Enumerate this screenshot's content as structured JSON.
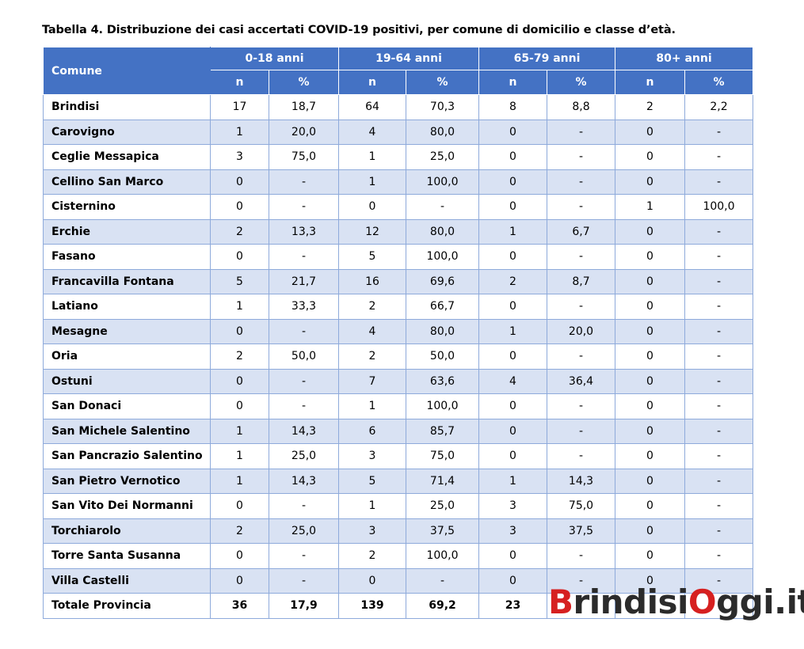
{
  "title": "Tabella 4. Distribuzione dei casi accertati COVID-19 positivi, per comune di domicilio e classe d’età.",
  "header": {
    "comune": "Comune",
    "groups": [
      "0-18 anni",
      "19-64 anni",
      "65-79 anni",
      "80+ anni"
    ],
    "sub": [
      "n",
      "%",
      "n",
      "%",
      "n",
      "%",
      "n",
      "%"
    ]
  },
  "rows": [
    {
      "name": "Brindisi",
      "cells": [
        "17",
        "18,7",
        "64",
        "70,3",
        "8",
        "8,8",
        "2",
        "2,2"
      ]
    },
    {
      "name": "Carovigno",
      "cells": [
        "1",
        "20,0",
        "4",
        "80,0",
        "0",
        "-",
        "0",
        "-"
      ]
    },
    {
      "name": "Ceglie Messapica",
      "cells": [
        "3",
        "75,0",
        "1",
        "25,0",
        "0",
        "-",
        "0",
        "-"
      ]
    },
    {
      "name": "Cellino San Marco",
      "cells": [
        "0",
        "-",
        "1",
        "100,0",
        "0",
        "-",
        "0",
        "-"
      ]
    },
    {
      "name": "Cisternino",
      "cells": [
        "0",
        "-",
        "0",
        "-",
        "0",
        "-",
        "1",
        "100,0"
      ]
    },
    {
      "name": "Erchie",
      "cells": [
        "2",
        "13,3",
        "12",
        "80,0",
        "1",
        "6,7",
        "0",
        "-"
      ]
    },
    {
      "name": "Fasano",
      "cells": [
        "0",
        "-",
        "5",
        "100,0",
        "0",
        "-",
        "0",
        "-"
      ]
    },
    {
      "name": "Francavilla Fontana",
      "cells": [
        "5",
        "21,7",
        "16",
        "69,6",
        "2",
        "8,7",
        "0",
        "-"
      ]
    },
    {
      "name": "Latiano",
      "cells": [
        "1",
        "33,3",
        "2",
        "66,7",
        "0",
        "-",
        "0",
        "-"
      ]
    },
    {
      "name": "Mesagne",
      "cells": [
        "0",
        "-",
        "4",
        "80,0",
        "1",
        "20,0",
        "0",
        "-"
      ]
    },
    {
      "name": "Oria",
      "cells": [
        "2",
        "50,0",
        "2",
        "50,0",
        "0",
        "-",
        "0",
        "-"
      ]
    },
    {
      "name": "Ostuni",
      "cells": [
        "0",
        "-",
        "7",
        "63,6",
        "4",
        "36,4",
        "0",
        "-"
      ]
    },
    {
      "name": "San Donaci",
      "cells": [
        "0",
        "-",
        "1",
        "100,0",
        "0",
        "-",
        "0",
        "-"
      ]
    },
    {
      "name": "San Michele Salentino",
      "cells": [
        "1",
        "14,3",
        "6",
        "85,7",
        "0",
        "-",
        "0",
        "-"
      ]
    },
    {
      "name": "San Pancrazio Salentino",
      "cells": [
        "1",
        "25,0",
        "3",
        "75,0",
        "0",
        "-",
        "0",
        "-"
      ]
    },
    {
      "name": "San Pietro Vernotico",
      "cells": [
        "1",
        "14,3",
        "5",
        "71,4",
        "1",
        "14,3",
        "0",
        "-"
      ]
    },
    {
      "name": "San Vito Dei Normanni",
      "cells": [
        "0",
        "-",
        "1",
        "25,0",
        "3",
        "75,0",
        "0",
        "-"
      ]
    },
    {
      "name": "Torchiarolo",
      "cells": [
        "2",
        "25,0",
        "3",
        "37,5",
        "3",
        "37,5",
        "0",
        "-"
      ]
    },
    {
      "name": "Torre Santa Susanna",
      "cells": [
        "0",
        "-",
        "2",
        "100,0",
        "0",
        "-",
        "0",
        "-"
      ]
    },
    {
      "name": "Villa Castelli",
      "cells": [
        "0",
        "-",
        "0",
        "-",
        "0",
        "-",
        "0",
        "-"
      ]
    }
  ],
  "total": {
    "name": "Totale Provincia",
    "cells": [
      "36",
      "17,9",
      "139",
      "69,2",
      "23",
      "",
      "",
      ""
    ]
  },
  "watermark": {
    "prefix": "B",
    "part1": "rindisi",
    "mid": "O",
    "part2": "ggi.it"
  }
}
